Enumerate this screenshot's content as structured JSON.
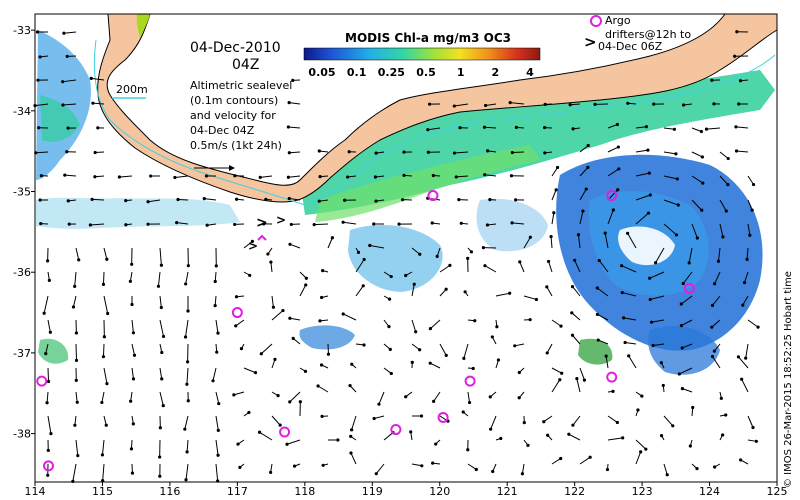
{
  "map": {
    "date": "04-Dec-2010",
    "hour": "04Z",
    "colorbar_title": "MODIS Chl-a mg/m3 OC3",
    "colorbar_ticks": [
      "0.05",
      "0.1",
      "0.25",
      "0.5",
      "1",
      "2",
      "4"
    ],
    "colorbar_colors": [
      "#0b1a8c",
      "#1f56d8",
      "#22b0e6",
      "#32d6a4",
      "#9fe23c",
      "#f3e021",
      "#f0921b",
      "#d7331c",
      "#8b1a14"
    ],
    "isobath_label": "200m",
    "description_lines": [
      "Altimetric sealevel",
      "(0.1m contours)",
      "and velocity for",
      "04-Dec 04Z",
      "0.5m/s (1kt 24h)"
    ],
    "argo_legend": {
      "line1": "Argo",
      "line2": "drifters@12h to",
      "line3": "04-Dec 06Z",
      "arrow_symbol": ">"
    },
    "credit": "© IMOS 26-Mar-2015 18:52:25 Hobart time",
    "x_ticks": [
      "114",
      "115",
      "116",
      "117",
      "118",
      "119",
      "120",
      "121",
      "122",
      "123",
      "124",
      "125"
    ],
    "y_ticks": [
      "-33",
      "-34",
      "-35",
      "-36",
      "-37",
      "-38"
    ],
    "colors": {
      "land": "#f5c59f",
      "coast": "#000000",
      "argo": "#e020e0",
      "isobath": "#40d0e0"
    },
    "argo_floats": [
      {
        "lon": 119.9,
        "lat": -35.05
      },
      {
        "lon": 122.55,
        "lat": -35.05
      },
      {
        "lon": 123.7,
        "lat": -36.2
      },
      {
        "lon": 117.0,
        "lat": -36.5
      },
      {
        "lon": 114.1,
        "lat": -37.35
      },
      {
        "lon": 120.45,
        "lat": -37.35
      },
      {
        "lon": 122.55,
        "lat": -37.3
      },
      {
        "lon": 120.05,
        "lat": -37.8
      },
      {
        "lon": 117.7,
        "lat": -37.98
      },
      {
        "lon": 119.35,
        "lat": -37.95
      },
      {
        "lon": 114.2,
        "lat": -38.4
      }
    ]
  }
}
